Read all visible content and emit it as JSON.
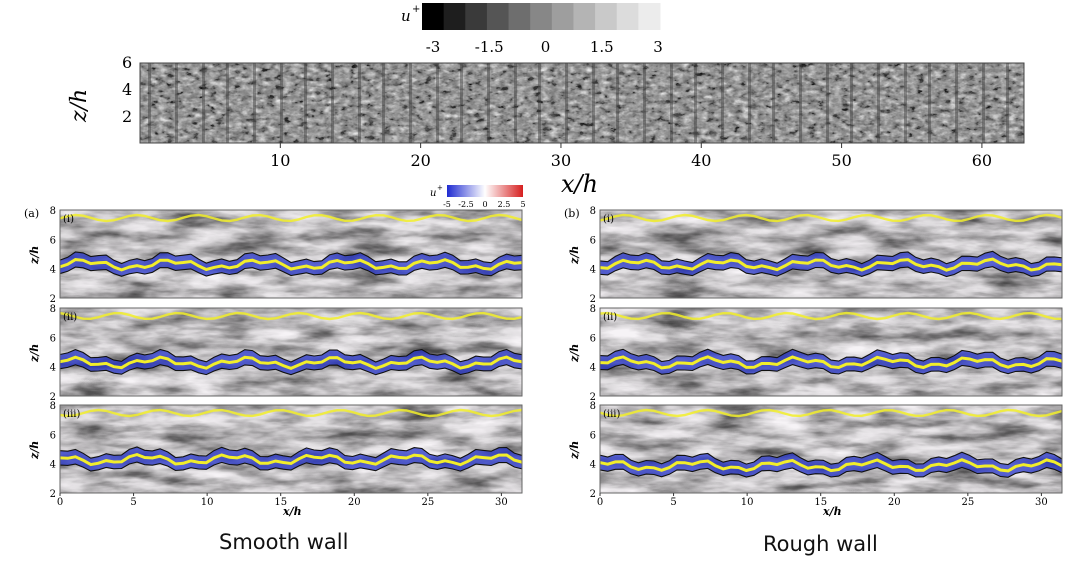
{
  "top_figure": {
    "colorbar": {
      "symbol": "u",
      "superscript": "+",
      "ticks": [
        "-3",
        "-1.5",
        "0",
        "1.5",
        "3"
      ],
      "colors": [
        "#000000",
        "#1e1e1e",
        "#3a3a3a",
        "#555555",
        "#6e6e6e",
        "#878787",
        "#9e9e9e",
        "#b4b4b4",
        "#c9c9c9",
        "#dcdcdc",
        "#ececec"
      ]
    },
    "ylabel": "z/h",
    "xlabel": "x/h",
    "yticks": [
      "2",
      "4",
      "6"
    ],
    "xticks": [
      "10",
      "20",
      "30",
      "40",
      "50",
      "60"
    ]
  },
  "colorbar2": {
    "symbol": "u",
    "superscript": "+",
    "ticks": [
      "-5",
      "-2.5",
      "0",
      "2.5",
      "5"
    ],
    "colors": [
      "#1f2bd1",
      "#ffffff",
      "#d61f1f"
    ]
  },
  "smooth": {
    "letter": "(a)",
    "caption": "Smooth wall",
    "panels": [
      {
        "label": "(i)"
      },
      {
        "label": "(ii)"
      },
      {
        "label": "(iii)"
      }
    ],
    "xlabel": "x/h",
    "ylabel": "z/h",
    "yticks": [
      "2",
      "4",
      "6",
      "8"
    ],
    "xticks": [
      "0",
      "5",
      "10",
      "15",
      "20",
      "25",
      "30"
    ]
  },
  "rough": {
    "letter": "(b)",
    "caption": "Rough wall",
    "panels": [
      {
        "label": "(i)"
      },
      {
        "label": "(ii)"
      },
      {
        "label": "(iii)"
      }
    ],
    "xlabel": "x/h",
    "ylabel": "z/h",
    "yticks": [
      "2",
      "4",
      "6",
      "8"
    ],
    "xticks": [
      "0",
      "5",
      "10",
      "15",
      "20",
      "25",
      "30"
    ]
  }
}
